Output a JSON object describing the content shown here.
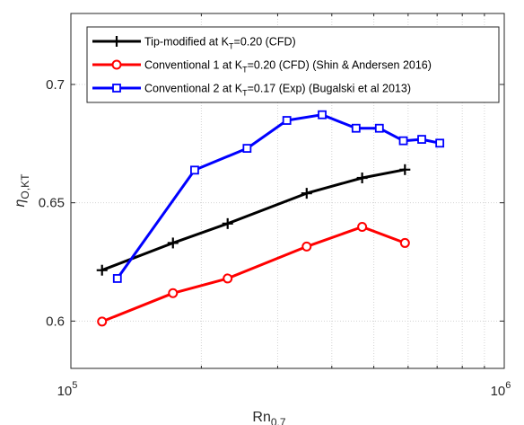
{
  "chart_data": {
    "type": "line",
    "xscale": "log",
    "xlim": [
      100000,
      1000000
    ],
    "ylim": [
      0.58,
      0.73
    ],
    "xlabel": "Rn",
    "xlabel_sub": "0.7",
    "ylabel": "η",
    "ylabel_sub": "O,KT",
    "xticks": [
      {
        "value": 100000,
        "base": "10",
        "exp": "5"
      },
      {
        "value": 1000000,
        "base": "10",
        "exp": "6"
      }
    ],
    "yticks": [
      {
        "value": 0.6,
        "label": "0.6"
      },
      {
        "value": 0.65,
        "label": "0.65"
      },
      {
        "value": 0.7,
        "label": "0.7"
      }
    ],
    "grid": {
      "x_minor": true,
      "y_major": true
    },
    "legend_position": "top-left",
    "series": [
      {
        "name": "Tip-modified at K_T=0.20 (CFD)",
        "legend_parts": [
          "Tip-modified at K",
          "T",
          "=0.20 (CFD)"
        ],
        "color": "#000000",
        "marker": "plus",
        "x": [
          118000,
          172000,
          230000,
          350000,
          470000,
          590000
        ],
        "y": [
          0.6215,
          0.633,
          0.6412,
          0.654,
          0.6605,
          0.664
        ]
      },
      {
        "name": "Conventional 1 at K_T=0.20 (CFD) (Shin & Andersen 2016)",
        "legend_parts": [
          "Conventional 1 at K",
          "T",
          "=0.20 (CFD) (Shin & Andersen 2016)"
        ],
        "color": "#ff0000",
        "marker": "circle",
        "x": [
          118000,
          172000,
          230000,
          350000,
          470000,
          590000
        ],
        "y": [
          0.5998,
          0.6118,
          0.618,
          0.6315,
          0.6398,
          0.633
        ]
      },
      {
        "name": "Conventional 2 at K_T=0.17 (Exp) (Bugalski et al 2013)",
        "legend_parts": [
          "Conventional 2 at K",
          "T",
          "=0.17 (Exp) (Bugalski et al 2013)"
        ],
        "color": "#0000ff",
        "marker": "square",
        "x": [
          128000,
          193000,
          255000,
          315000,
          380000,
          455000,
          515000,
          585000,
          645000,
          710000
        ],
        "y": [
          0.618,
          0.6638,
          0.673,
          0.6848,
          0.6872,
          0.6815,
          0.6815,
          0.6762,
          0.6768,
          0.6752
        ]
      }
    ]
  }
}
